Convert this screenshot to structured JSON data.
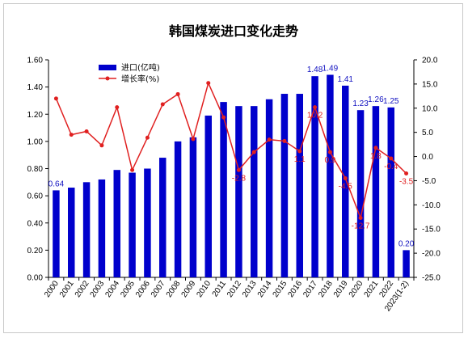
{
  "chart_data": {
    "type": "bar+line",
    "title": "韩国煤炭进口变化走势",
    "categories": [
      "2000",
      "2001",
      "2002",
      "2003",
      "2004",
      "2005",
      "2006",
      "2007",
      "2008",
      "2009",
      "2010",
      "2011",
      "2012",
      "2013",
      "2014",
      "2015",
      "2016",
      "2017",
      "2018",
      "2019",
      "2020",
      "2021",
      "2022",
      "2023(1-2)"
    ],
    "series": [
      {
        "name": "进口(亿吨)",
        "type": "bar",
        "axis": "left",
        "color": "#0000cc",
        "values": [
          0.64,
          0.66,
          0.7,
          0.72,
          0.79,
          0.77,
          0.8,
          0.88,
          1.0,
          1.03,
          1.19,
          1.29,
          1.26,
          1.26,
          1.31,
          1.35,
          1.35,
          1.48,
          1.49,
          1.41,
          1.23,
          1.26,
          1.25,
          0.2
        ],
        "labels": {
          "0": "0.64",
          "17": "1.48",
          "18": "1.49",
          "19": "1.41",
          "20": "1.23",
          "21": "1.26",
          "22": "1.25",
          "23": "0.20"
        }
      },
      {
        "name": "增长率(%)",
        "type": "line",
        "axis": "right",
        "color": "#e02020",
        "values": [
          12.0,
          4.5,
          5.2,
          2.3,
          10.2,
          -2.8,
          3.9,
          10.8,
          12.9,
          3.6,
          15.2,
          8.1,
          -2.8,
          0.9,
          3.5,
          3.2,
          1.1,
          10.2,
          0.9,
          -4.5,
          -12.7,
          1.8,
          -0.4,
          -3.5
        ],
        "labels": {
          "12": "-2.8",
          "16": "1.1",
          "17": "10.2",
          "18": "0.9",
          "19": "-4.5",
          "20": "-12.7",
          "21": "1.8",
          "22": "-0.4",
          "23": "-3.5"
        }
      }
    ],
    "y_left": {
      "min": 0,
      "max": 1.6,
      "ticks": [
        "0.00",
        "0.20",
        "0.40",
        "0.60",
        "0.80",
        "1.00",
        "1.20",
        "1.40",
        "1.60"
      ]
    },
    "y_right": {
      "min": -25,
      "max": 20,
      "ticks": [
        "-25.0",
        "-20.0",
        "-15.0",
        "-10.0",
        "-5.0",
        "0.0",
        "5.0",
        "10.0",
        "15.0",
        "20.0"
      ]
    },
    "legend_position": "top-left",
    "grid": false
  }
}
